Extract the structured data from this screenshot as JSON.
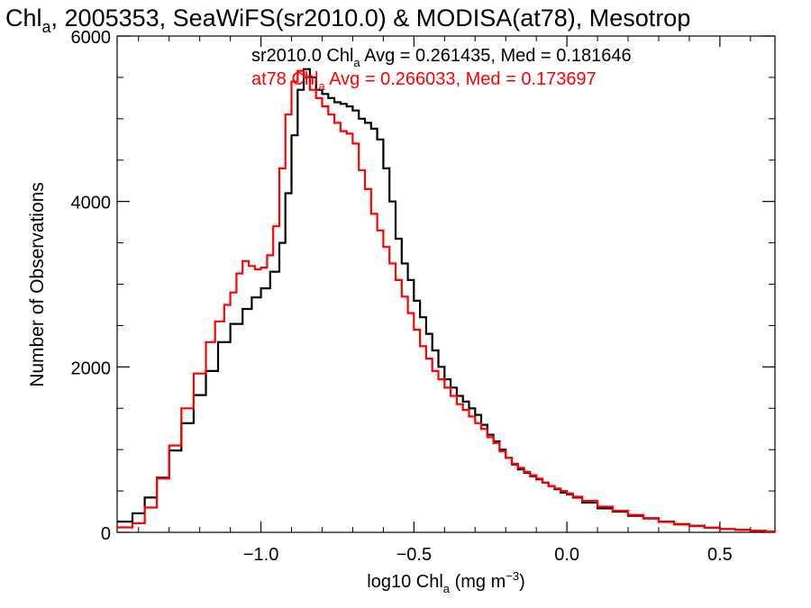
{
  "chart_data": {
    "type": "line",
    "step": true,
    "title": {
      "main": "Chl",
      "main_sub": "a",
      "rest": ", 2005353, SeaWiFS(sr2010.0) & MODISA(at78), Mesotrop"
    },
    "xlabel": {
      "pre": "log10 Chl",
      "sub": "a",
      "mid": " (mg m",
      "sup": "−3",
      "post": ")"
    },
    "ylabel": "Number of Observations",
    "xlim": [
      -1.47,
      0.68
    ],
    "ylim": [
      0,
      6000
    ],
    "x_ticks": [
      {
        "value": -1.0,
        "label": "−1.0"
      },
      {
        "value": -0.5,
        "label": "−0.5"
      },
      {
        "value": 0.0,
        "label": "0.0"
      },
      {
        "value": 0.5,
        "label": "0.5"
      }
    ],
    "y_ticks": [
      {
        "value": 0,
        "label": "0"
      },
      {
        "value": 2000,
        "label": "2000"
      },
      {
        "value": 4000,
        "label": "4000"
      },
      {
        "value": 6000,
        "label": "6000"
      }
    ],
    "annotations": [
      {
        "id": "sr",
        "pre": "sr2010.0 Chl",
        "sub": "a",
        "post": " Avg = 0.261435, Med = 0.181646"
      },
      {
        "id": "at",
        "pre": "at78 Chl",
        "sub": "a",
        "post": " Avg = 0.266033, Med = 0.173697"
      }
    ],
    "series": [
      {
        "name": "sr2010.0",
        "color": "#000000",
        "points": [
          [
            -1.47,
            130
          ],
          [
            -1.42,
            230
          ],
          [
            -1.38,
            420
          ],
          [
            -1.34,
            660
          ],
          [
            -1.3,
            990
          ],
          [
            -1.26,
            1320
          ],
          [
            -1.22,
            1660
          ],
          [
            -1.18,
            1950
          ],
          [
            -1.14,
            2300
          ],
          [
            -1.1,
            2520
          ],
          [
            -1.06,
            2700
          ],
          [
            -1.03,
            2840
          ],
          [
            -1.0,
            2950
          ],
          [
            -0.97,
            3150
          ],
          [
            -0.94,
            3500
          ],
          [
            -0.92,
            4100
          ],
          [
            -0.9,
            4800
          ],
          [
            -0.88,
            5350
          ],
          [
            -0.86,
            5600
          ],
          [
            -0.84,
            5500
          ],
          [
            -0.82,
            5350
          ],
          [
            -0.8,
            5300
          ],
          [
            -0.78,
            5250
          ],
          [
            -0.76,
            5200
          ],
          [
            -0.74,
            5180
          ],
          [
            -0.72,
            5150
          ],
          [
            -0.7,
            5100
          ],
          [
            -0.68,
            5000
          ],
          [
            -0.66,
            4950
          ],
          [
            -0.64,
            4880
          ],
          [
            -0.62,
            4750
          ],
          [
            -0.6,
            4400
          ],
          [
            -0.58,
            4000
          ],
          [
            -0.56,
            3550
          ],
          [
            -0.54,
            3250
          ],
          [
            -0.52,
            3050
          ],
          [
            -0.5,
            2800
          ],
          [
            -0.48,
            2600
          ],
          [
            -0.46,
            2400
          ],
          [
            -0.44,
            2200
          ],
          [
            -0.42,
            2000
          ],
          [
            -0.4,
            1850
          ],
          [
            -0.38,
            1750
          ],
          [
            -0.36,
            1650
          ],
          [
            -0.34,
            1580
          ],
          [
            -0.32,
            1500
          ],
          [
            -0.3,
            1420
          ],
          [
            -0.28,
            1300
          ],
          [
            -0.26,
            1180
          ],
          [
            -0.24,
            1100
          ],
          [
            -0.22,
            1000
          ],
          [
            -0.2,
            900
          ],
          [
            -0.18,
            820
          ],
          [
            -0.16,
            760
          ],
          [
            -0.14,
            720
          ],
          [
            -0.12,
            680
          ],
          [
            -0.1,
            640
          ],
          [
            -0.08,
            600
          ],
          [
            -0.06,
            560
          ],
          [
            -0.04,
            520
          ],
          [
            -0.02,
            480
          ],
          [
            0.0,
            460
          ],
          [
            0.02,
            420
          ],
          [
            0.05,
            360
          ],
          [
            0.1,
            290
          ],
          [
            0.15,
            250
          ],
          [
            0.2,
            200
          ],
          [
            0.25,
            170
          ],
          [
            0.3,
            130
          ],
          [
            0.35,
            100
          ],
          [
            0.4,
            80
          ],
          [
            0.45,
            55
          ],
          [
            0.5,
            40
          ],
          [
            0.55,
            30
          ],
          [
            0.6,
            18
          ],
          [
            0.65,
            10
          ],
          [
            0.68,
            5
          ]
        ]
      },
      {
        "name": "at78",
        "color": "#ff0000",
        "points": [
          [
            -1.47,
            60
          ],
          [
            -1.42,
            110
          ],
          [
            -1.38,
            300
          ],
          [
            -1.34,
            650
          ],
          [
            -1.3,
            1050
          ],
          [
            -1.26,
            1500
          ],
          [
            -1.22,
            1920
          ],
          [
            -1.18,
            2300
          ],
          [
            -1.15,
            2550
          ],
          [
            -1.12,
            2750
          ],
          [
            -1.1,
            2900
          ],
          [
            -1.08,
            3130
          ],
          [
            -1.06,
            3280
          ],
          [
            -1.04,
            3220
          ],
          [
            -1.02,
            3180
          ],
          [
            -1.0,
            3200
          ],
          [
            -0.98,
            3350
          ],
          [
            -0.96,
            3700
          ],
          [
            -0.94,
            4400
          ],
          [
            -0.92,
            5050
          ],
          [
            -0.9,
            5450
          ],
          [
            -0.88,
            5580
          ],
          [
            -0.86,
            5500
          ],
          [
            -0.84,
            5350
          ],
          [
            -0.82,
            5250
          ],
          [
            -0.8,
            5150
          ],
          [
            -0.78,
            5050
          ],
          [
            -0.76,
            4950
          ],
          [
            -0.74,
            4850
          ],
          [
            -0.72,
            4820
          ],
          [
            -0.7,
            4700
          ],
          [
            -0.68,
            4380
          ],
          [
            -0.66,
            4150
          ],
          [
            -0.64,
            3850
          ],
          [
            -0.62,
            3650
          ],
          [
            -0.6,
            3450
          ],
          [
            -0.58,
            3250
          ],
          [
            -0.56,
            3050
          ],
          [
            -0.54,
            2850
          ],
          [
            -0.52,
            2650
          ],
          [
            -0.5,
            2450
          ],
          [
            -0.48,
            2250
          ],
          [
            -0.46,
            2100
          ],
          [
            -0.44,
            1950
          ],
          [
            -0.42,
            1850
          ],
          [
            -0.4,
            1750
          ],
          [
            -0.38,
            1650
          ],
          [
            -0.36,
            1550
          ],
          [
            -0.34,
            1480
          ],
          [
            -0.32,
            1400
          ],
          [
            -0.3,
            1320
          ],
          [
            -0.28,
            1250
          ],
          [
            -0.26,
            1150
          ],
          [
            -0.24,
            1080
          ],
          [
            -0.22,
            980
          ],
          [
            -0.2,
            900
          ],
          [
            -0.18,
            830
          ],
          [
            -0.16,
            780
          ],
          [
            -0.14,
            730
          ],
          [
            -0.12,
            690
          ],
          [
            -0.1,
            650
          ],
          [
            -0.08,
            600
          ],
          [
            -0.06,
            560
          ],
          [
            -0.04,
            530
          ],
          [
            -0.02,
            500
          ],
          [
            0.0,
            470
          ],
          [
            0.02,
            430
          ],
          [
            0.05,
            380
          ],
          [
            0.1,
            310
          ],
          [
            0.15,
            260
          ],
          [
            0.2,
            210
          ],
          [
            0.25,
            165
          ],
          [
            0.3,
            125
          ],
          [
            0.35,
            95
          ],
          [
            0.4,
            75
          ],
          [
            0.45,
            55
          ],
          [
            0.5,
            40
          ],
          [
            0.55,
            28
          ],
          [
            0.6,
            18
          ],
          [
            0.65,
            10
          ],
          [
            0.68,
            5
          ]
        ]
      }
    ]
  }
}
